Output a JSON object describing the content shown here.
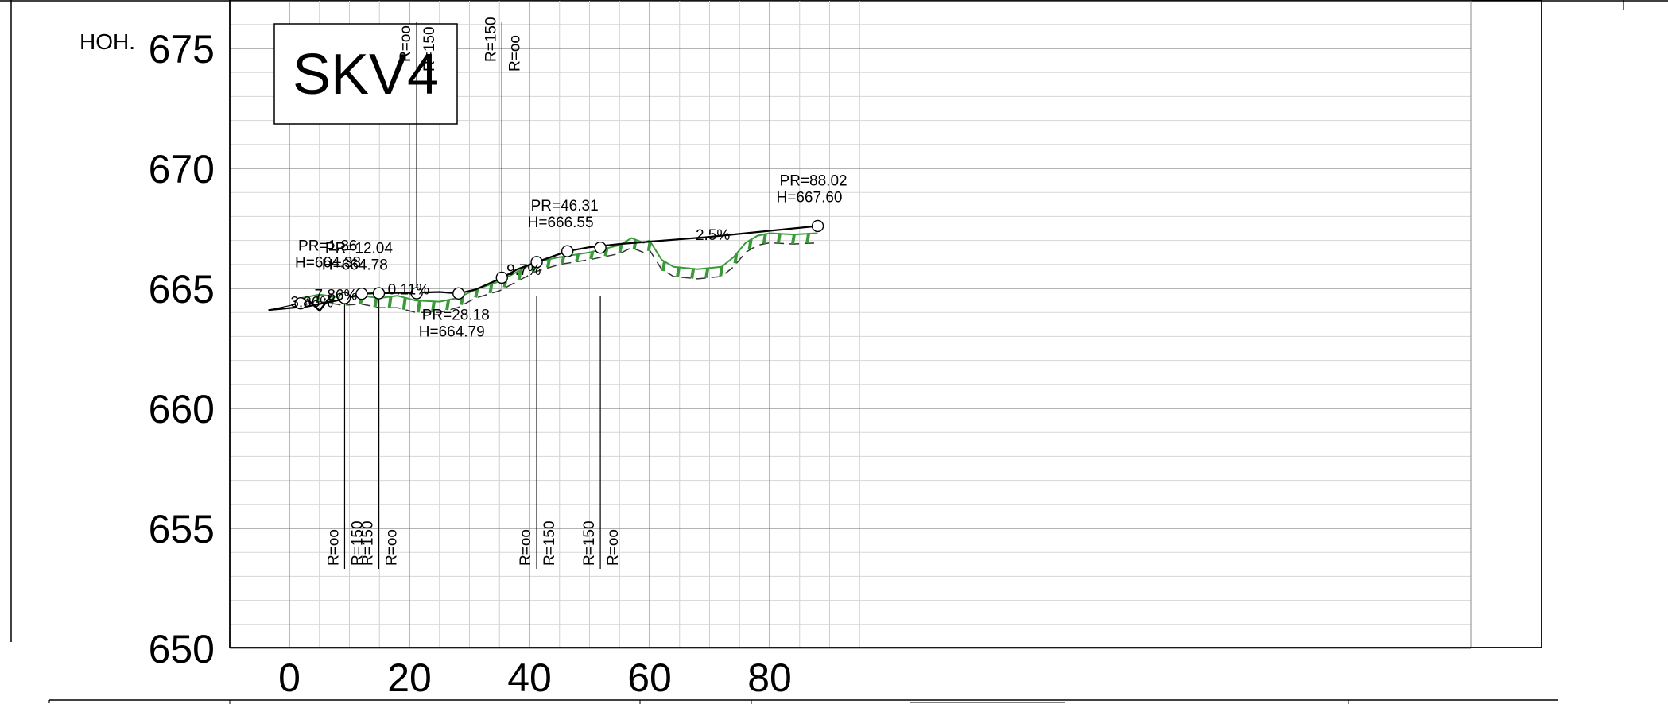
{
  "title": "SKV4",
  "y_axis_label": "HOH.",
  "chart_data": {
    "type": "line",
    "title": "SKV4",
    "ylabel": "HOH.",
    "xlim": [
      -5,
      98
    ],
    "ylim": [
      650,
      677
    ],
    "x_ticks": [
      "0",
      "20",
      "40",
      "60",
      "80"
    ],
    "y_ticks": [
      "650",
      "655",
      "660",
      "665",
      "670",
      "675"
    ],
    "grid": true,
    "design_line": {
      "name": "",
      "x": [
        -3.5,
        3,
        9,
        12.04,
        15,
        21,
        25,
        28.18,
        31,
        35.5,
        38,
        41.2,
        46.31,
        50,
        55,
        60,
        70,
        80,
        88.02
      ],
      "y": [
        664.1,
        664.25,
        664.55,
        664.78,
        664.8,
        664.82,
        664.85,
        664.79,
        664.95,
        665.45,
        665.8,
        666.1,
        666.55,
        666.72,
        666.85,
        666.95,
        667.15,
        667.4,
        667.6
      ]
    },
    "terrain_line": {
      "name": "",
      "x": [
        2,
        5,
        9,
        12,
        15,
        18,
        21,
        25,
        28,
        31,
        35,
        38,
        41,
        45,
        50,
        55,
        57,
        59,
        60,
        62,
        64,
        68,
        72,
        74,
        76,
        78,
        80,
        84,
        88
      ],
      "y": [
        664.6,
        664.75,
        664.6,
        664.7,
        664.6,
        664.7,
        664.5,
        664.45,
        664.6,
        664.95,
        665.3,
        665.7,
        666.1,
        666.3,
        666.5,
        666.8,
        667.1,
        666.9,
        667.0,
        666.2,
        665.9,
        665.8,
        665.9,
        666.3,
        666.9,
        667.2,
        667.3,
        667.25,
        667.3
      ]
    },
    "subgrade_line": {
      "name": "",
      "x": [
        2,
        5,
        9,
        12,
        15,
        18,
        21,
        25,
        28,
        31,
        35,
        38,
        41,
        45,
        50,
        55,
        57,
        59,
        60,
        62,
        64,
        68,
        72,
        74,
        76,
        78,
        80,
        84,
        88
      ],
      "y": [
        664.3,
        664.45,
        664.3,
        664.35,
        664.2,
        664.2,
        664.0,
        664.0,
        664.2,
        664.6,
        664.9,
        665.3,
        665.7,
        666.0,
        666.2,
        666.45,
        666.7,
        666.5,
        666.6,
        665.8,
        665.5,
        665.4,
        665.5,
        665.9,
        666.5,
        666.8,
        666.9,
        666.85,
        666.9
      ]
    },
    "points": [
      {
        "pr": "PR=1.86",
        "h": "H=664.38",
        "x": 1.86,
        "y": 664.38
      },
      {
        "pr": "PR=12.04",
        "h": "H=664.78",
        "x": 12.04,
        "y": 664.78
      },
      {
        "pr": "PR=28.18",
        "h": "H=664.79",
        "x": 28.18,
        "y": 664.79
      },
      {
        "pr": "PR=46.31",
        "h": "H=666.55",
        "x": 46.31,
        "y": 666.55
      },
      {
        "pr": "PR=88.02",
        "h": "H=667.60",
        "x": 88.02,
        "y": 667.6
      }
    ],
    "extra_circles": [
      {
        "x": 9.2,
        "y": 664.6
      },
      {
        "x": 14.9,
        "y": 664.8
      },
      {
        "x": 21.2,
        "y": 664.8
      },
      {
        "x": 35.4,
        "y": 665.45
      },
      {
        "x": 41.2,
        "y": 666.1
      },
      {
        "x": 51.8,
        "y": 666.7
      }
    ],
    "grades": [
      {
        "text": "3.86%",
        "x": 1.5,
        "y": 664.45
      },
      {
        "text": "7.86%",
        "x": 5.5,
        "y": 664.75
      },
      {
        "text": "0.11%",
        "x": 17.7,
        "y": 664.98
      },
      {
        "text": "9.7%",
        "x": 37.5,
        "y": 665.8
      },
      {
        "text": "2.5%",
        "x": 69,
        "y": 667.25
      }
    ],
    "curve_marks": [
      {
        "x": 9.2,
        "side": "below",
        "first": "R=oo",
        "second": "R=150"
      },
      {
        "x": 14.9,
        "side": "below",
        "first": "R=150",
        "second": "R=oo"
      },
      {
        "x": 21.2,
        "side": "above",
        "first": "R=oo",
        "second": "R=150"
      },
      {
        "x": 35.4,
        "side": "above",
        "first": "R=150",
        "second": "R=oo"
      },
      {
        "x": 41.2,
        "side": "below",
        "first": "R=oo",
        "second": "R=150"
      },
      {
        "x": 51.8,
        "side": "below",
        "first": "R=150",
        "second": "R=oo"
      }
    ]
  }
}
